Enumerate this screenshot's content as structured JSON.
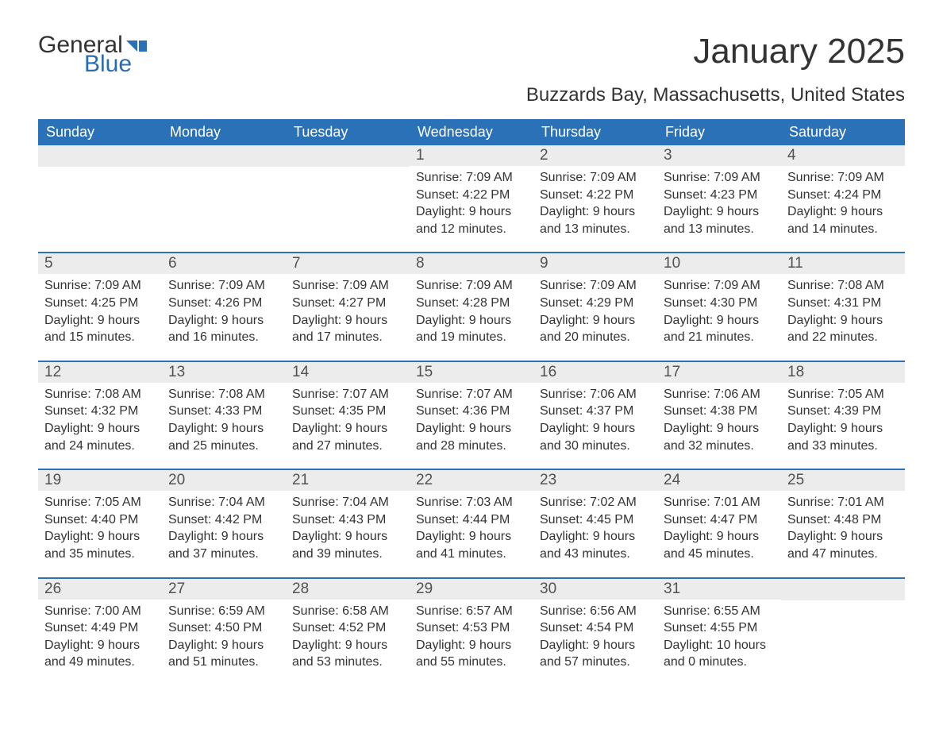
{
  "logo": {
    "text_general": "General",
    "text_blue": "Blue",
    "shape_color": "#2a71b8"
  },
  "title": "January 2025",
  "subtitle": "Buzzards Bay, Massachusetts, United States",
  "colors": {
    "header_bg": "#2a71b8",
    "header_text": "#ffffff",
    "daynum_bg": "#ececec",
    "daynum_text": "#525252",
    "body_text": "#333333",
    "week_border": "#2a71b8"
  },
  "day_headers": [
    "Sunday",
    "Monday",
    "Tuesday",
    "Wednesday",
    "Thursday",
    "Friday",
    "Saturday"
  ],
  "weeks": [
    [
      {
        "day": "",
        "sunrise": "",
        "sunset": "",
        "daylight": ""
      },
      {
        "day": "",
        "sunrise": "",
        "sunset": "",
        "daylight": ""
      },
      {
        "day": "",
        "sunrise": "",
        "sunset": "",
        "daylight": ""
      },
      {
        "day": "1",
        "sunrise": "Sunrise: 7:09 AM",
        "sunset": "Sunset: 4:22 PM",
        "daylight": "Daylight: 9 hours and 12 minutes."
      },
      {
        "day": "2",
        "sunrise": "Sunrise: 7:09 AM",
        "sunset": "Sunset: 4:22 PM",
        "daylight": "Daylight: 9 hours and 13 minutes."
      },
      {
        "day": "3",
        "sunrise": "Sunrise: 7:09 AM",
        "sunset": "Sunset: 4:23 PM",
        "daylight": "Daylight: 9 hours and 13 minutes."
      },
      {
        "day": "4",
        "sunrise": "Sunrise: 7:09 AM",
        "sunset": "Sunset: 4:24 PM",
        "daylight": "Daylight: 9 hours and 14 minutes."
      }
    ],
    [
      {
        "day": "5",
        "sunrise": "Sunrise: 7:09 AM",
        "sunset": "Sunset: 4:25 PM",
        "daylight": "Daylight: 9 hours and 15 minutes."
      },
      {
        "day": "6",
        "sunrise": "Sunrise: 7:09 AM",
        "sunset": "Sunset: 4:26 PM",
        "daylight": "Daylight: 9 hours and 16 minutes."
      },
      {
        "day": "7",
        "sunrise": "Sunrise: 7:09 AM",
        "sunset": "Sunset: 4:27 PM",
        "daylight": "Daylight: 9 hours and 17 minutes."
      },
      {
        "day": "8",
        "sunrise": "Sunrise: 7:09 AM",
        "sunset": "Sunset: 4:28 PM",
        "daylight": "Daylight: 9 hours and 19 minutes."
      },
      {
        "day": "9",
        "sunrise": "Sunrise: 7:09 AM",
        "sunset": "Sunset: 4:29 PM",
        "daylight": "Daylight: 9 hours and 20 minutes."
      },
      {
        "day": "10",
        "sunrise": "Sunrise: 7:09 AM",
        "sunset": "Sunset: 4:30 PM",
        "daylight": "Daylight: 9 hours and 21 minutes."
      },
      {
        "day": "11",
        "sunrise": "Sunrise: 7:08 AM",
        "sunset": "Sunset: 4:31 PM",
        "daylight": "Daylight: 9 hours and 22 minutes."
      }
    ],
    [
      {
        "day": "12",
        "sunrise": "Sunrise: 7:08 AM",
        "sunset": "Sunset: 4:32 PM",
        "daylight": "Daylight: 9 hours and 24 minutes."
      },
      {
        "day": "13",
        "sunrise": "Sunrise: 7:08 AM",
        "sunset": "Sunset: 4:33 PM",
        "daylight": "Daylight: 9 hours and 25 minutes."
      },
      {
        "day": "14",
        "sunrise": "Sunrise: 7:07 AM",
        "sunset": "Sunset: 4:35 PM",
        "daylight": "Daylight: 9 hours and 27 minutes."
      },
      {
        "day": "15",
        "sunrise": "Sunrise: 7:07 AM",
        "sunset": "Sunset: 4:36 PM",
        "daylight": "Daylight: 9 hours and 28 minutes."
      },
      {
        "day": "16",
        "sunrise": "Sunrise: 7:06 AM",
        "sunset": "Sunset: 4:37 PM",
        "daylight": "Daylight: 9 hours and 30 minutes."
      },
      {
        "day": "17",
        "sunrise": "Sunrise: 7:06 AM",
        "sunset": "Sunset: 4:38 PM",
        "daylight": "Daylight: 9 hours and 32 minutes."
      },
      {
        "day": "18",
        "sunrise": "Sunrise: 7:05 AM",
        "sunset": "Sunset: 4:39 PM",
        "daylight": "Daylight: 9 hours and 33 minutes."
      }
    ],
    [
      {
        "day": "19",
        "sunrise": "Sunrise: 7:05 AM",
        "sunset": "Sunset: 4:40 PM",
        "daylight": "Daylight: 9 hours and 35 minutes."
      },
      {
        "day": "20",
        "sunrise": "Sunrise: 7:04 AM",
        "sunset": "Sunset: 4:42 PM",
        "daylight": "Daylight: 9 hours and 37 minutes."
      },
      {
        "day": "21",
        "sunrise": "Sunrise: 7:04 AM",
        "sunset": "Sunset: 4:43 PM",
        "daylight": "Daylight: 9 hours and 39 minutes."
      },
      {
        "day": "22",
        "sunrise": "Sunrise: 7:03 AM",
        "sunset": "Sunset: 4:44 PM",
        "daylight": "Daylight: 9 hours and 41 minutes."
      },
      {
        "day": "23",
        "sunrise": "Sunrise: 7:02 AM",
        "sunset": "Sunset: 4:45 PM",
        "daylight": "Daylight: 9 hours and 43 minutes."
      },
      {
        "day": "24",
        "sunrise": "Sunrise: 7:01 AM",
        "sunset": "Sunset: 4:47 PM",
        "daylight": "Daylight: 9 hours and 45 minutes."
      },
      {
        "day": "25",
        "sunrise": "Sunrise: 7:01 AM",
        "sunset": "Sunset: 4:48 PM",
        "daylight": "Daylight: 9 hours and 47 minutes."
      }
    ],
    [
      {
        "day": "26",
        "sunrise": "Sunrise: 7:00 AM",
        "sunset": "Sunset: 4:49 PM",
        "daylight": "Daylight: 9 hours and 49 minutes."
      },
      {
        "day": "27",
        "sunrise": "Sunrise: 6:59 AM",
        "sunset": "Sunset: 4:50 PM",
        "daylight": "Daylight: 9 hours and 51 minutes."
      },
      {
        "day": "28",
        "sunrise": "Sunrise: 6:58 AM",
        "sunset": "Sunset: 4:52 PM",
        "daylight": "Daylight: 9 hours and 53 minutes."
      },
      {
        "day": "29",
        "sunrise": "Sunrise: 6:57 AM",
        "sunset": "Sunset: 4:53 PM",
        "daylight": "Daylight: 9 hours and 55 minutes."
      },
      {
        "day": "30",
        "sunrise": "Sunrise: 6:56 AM",
        "sunset": "Sunset: 4:54 PM",
        "daylight": "Daylight: 9 hours and 57 minutes."
      },
      {
        "day": "31",
        "sunrise": "Sunrise: 6:55 AM",
        "sunset": "Sunset: 4:55 PM",
        "daylight": "Daylight: 10 hours and 0 minutes."
      },
      {
        "day": "",
        "sunrise": "",
        "sunset": "",
        "daylight": ""
      }
    ]
  ]
}
